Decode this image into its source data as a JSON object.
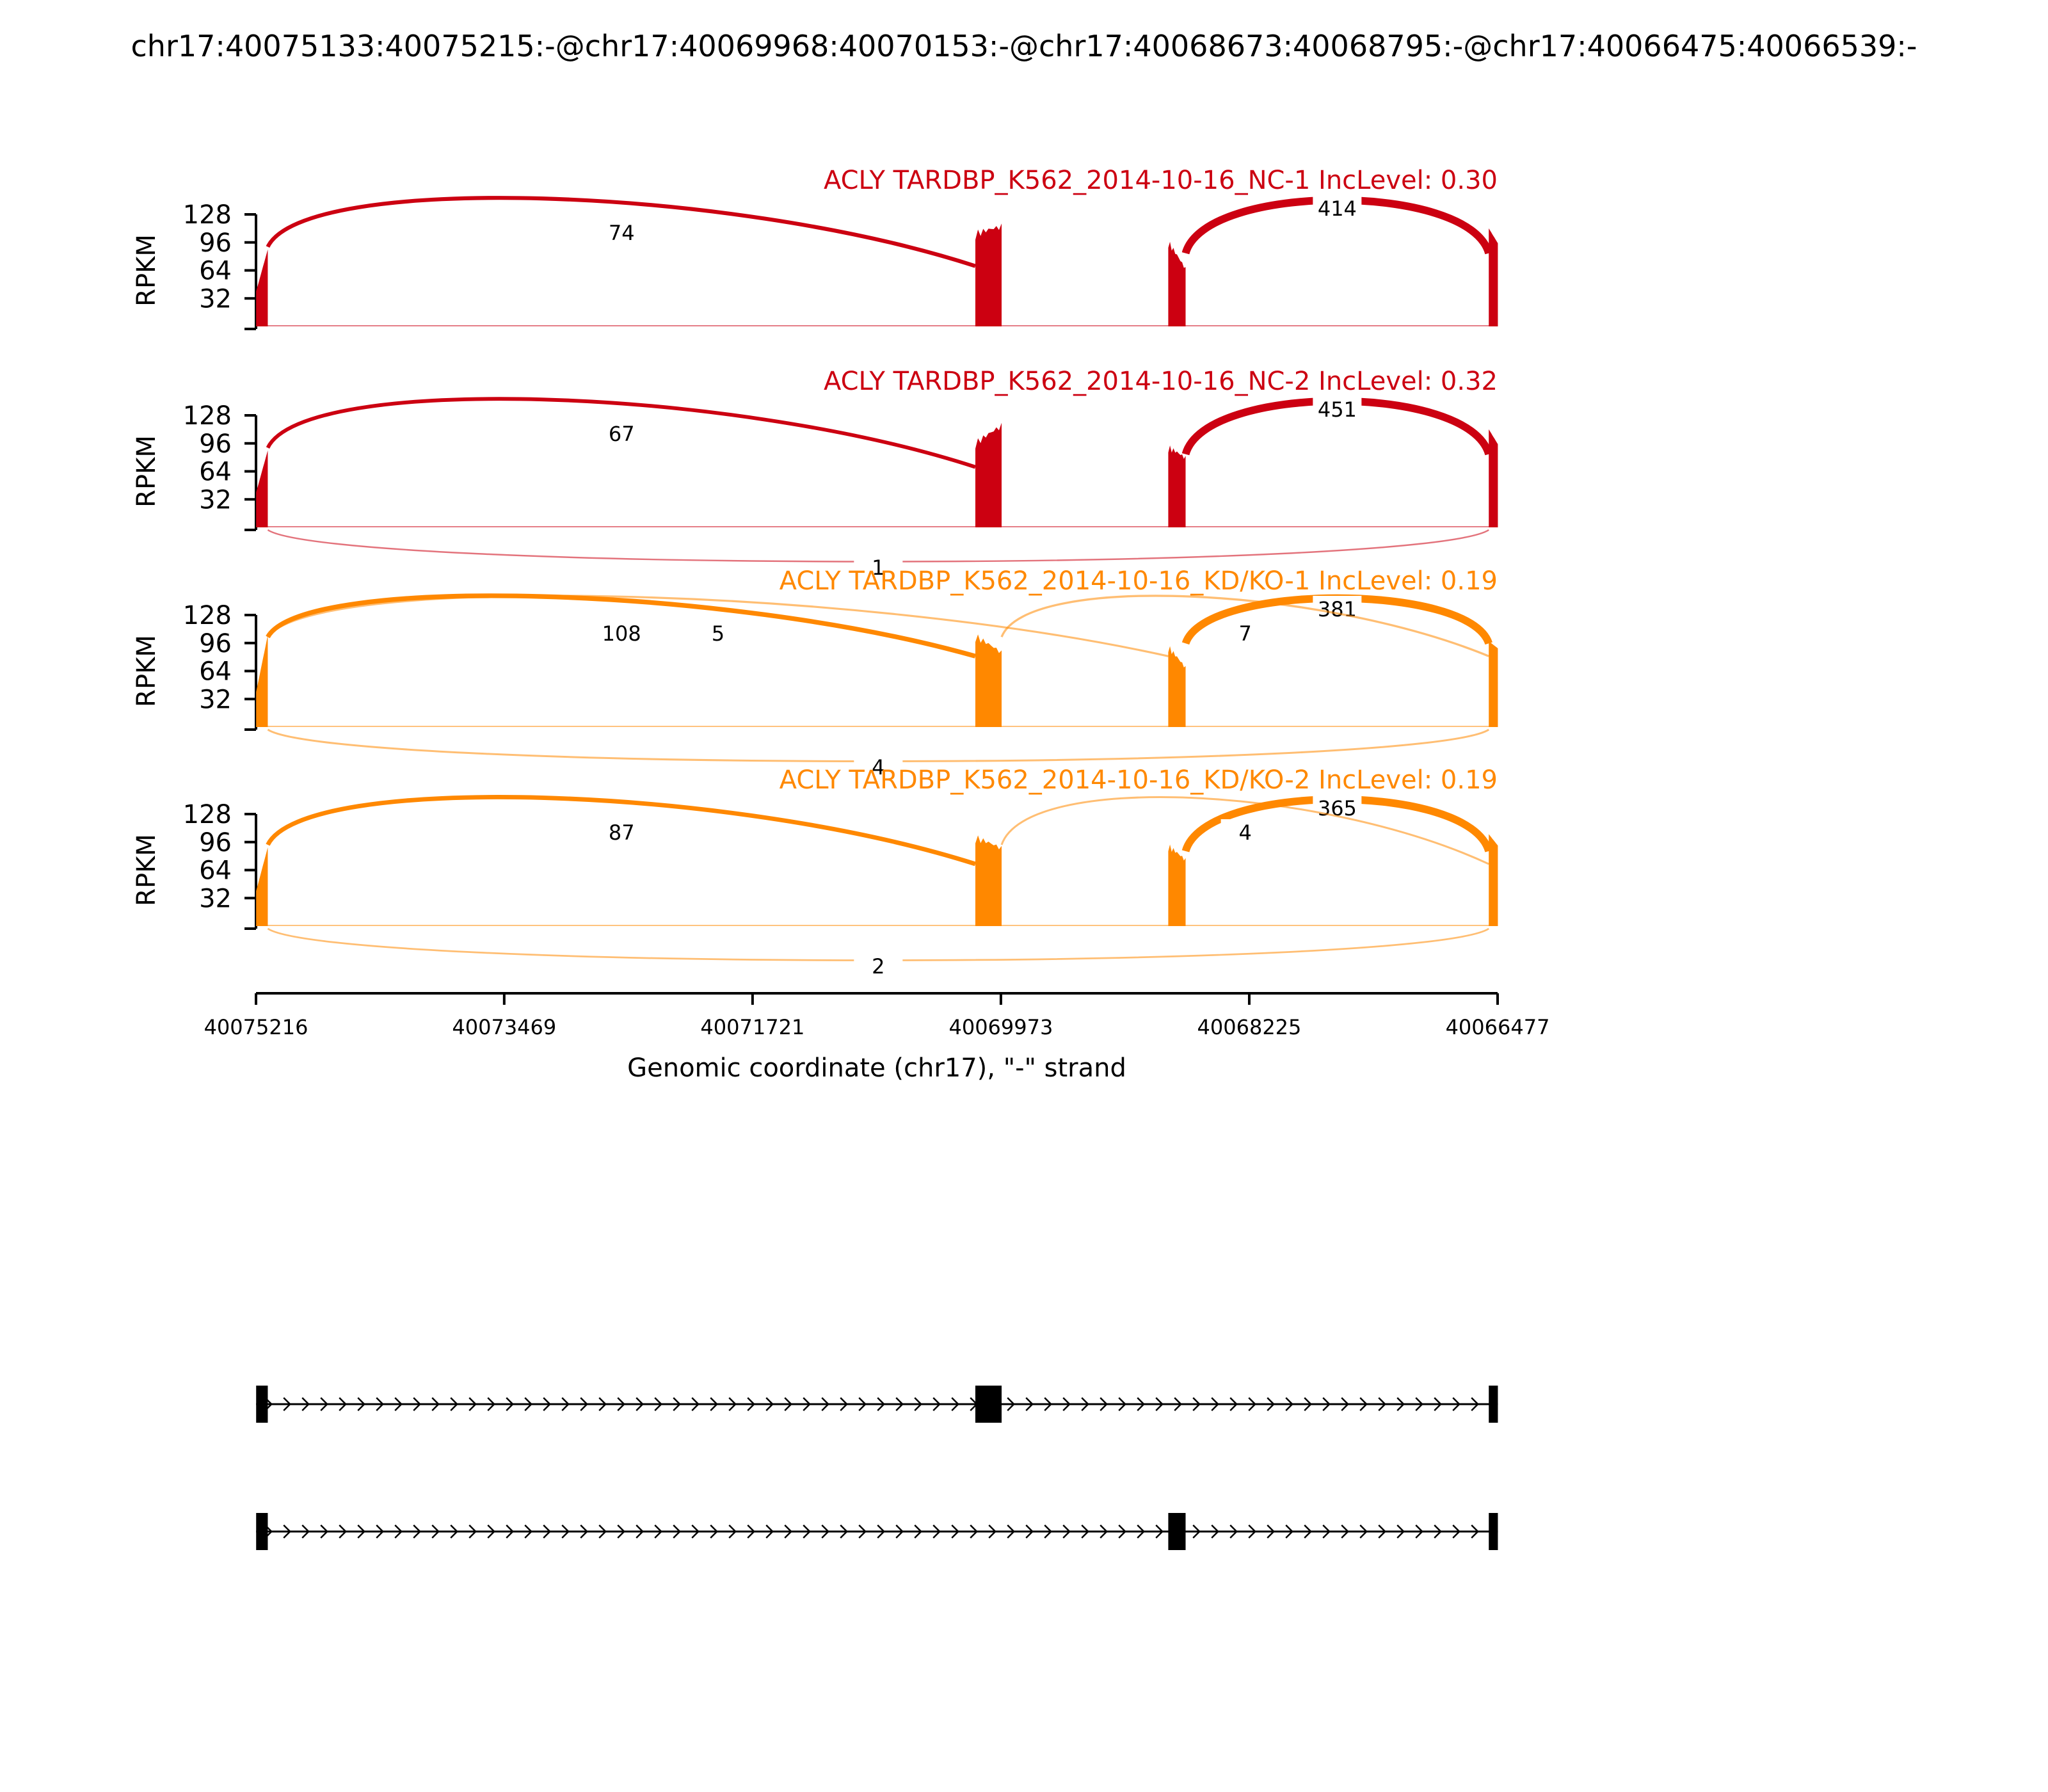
{
  "figure": {
    "title": "chr17:40075133:40075215:-@chr17:40069968:40070153:-@chr17:40068673:40068795:-@chr17:40066475:40066539:-"
  },
  "chart_data": {
    "type": "sashimi",
    "x_axis": {
      "label": "Genomic coordinate (chr17), \"-\" strand",
      "range": [
        40075216,
        40066477
      ],
      "ticks": [
        40075216,
        40073469,
        40071721,
        40069973,
        40068225,
        40066477
      ],
      "tick_labels": [
        "40075216",
        "40073469",
        "40071721",
        "40069973",
        "40068225",
        "40066477"
      ]
    },
    "exons": [
      {
        "start": 40075215,
        "end": 40075133
      },
      {
        "start": 40070153,
        "end": 40069968
      },
      {
        "start": 40068795,
        "end": 40068673
      },
      {
        "start": 40066539,
        "end": 40066475
      }
    ],
    "panels": [
      {
        "title": "ACLY TARDBP_K562_2014-10-16_NC-1 IncLevel: 0.30",
        "color": "#cc0011",
        "ylabel": "RPKM",
        "ylim": [
          0,
          128
        ],
        "yticks": [
          32,
          64,
          96,
          128
        ],
        "coverage": {
          "exon1": [
            40,
            88
          ],
          "exon2": [
            110,
            118
          ],
          "exon3": [
            100,
            68
          ],
          "exon4": [
            112,
            95
          ]
        },
        "junctions": [
          {
            "from": 40075133,
            "to": 40070153,
            "count": 74,
            "side": "above"
          },
          {
            "from": 40068673,
            "to": 40066539,
            "count": 414,
            "side": "above"
          }
        ]
      },
      {
        "title": "ACLY TARDBP_K562_2014-10-16_NC-2 IncLevel: 0.32",
        "color": "#cc0011",
        "ylabel": "RPKM",
        "ylim": [
          0,
          128
        ],
        "yticks": [
          32,
          64,
          96,
          128
        ],
        "coverage": {
          "exon1": [
            40,
            88
          ],
          "exon2": [
            100,
            120
          ],
          "exon3": [
            95,
            82
          ],
          "exon4": [
            112,
            95
          ]
        },
        "junctions": [
          {
            "from": 40075133,
            "to": 40070153,
            "count": 67,
            "side": "above"
          },
          {
            "from": 40068673,
            "to": 40066539,
            "count": 451,
            "side": "above"
          },
          {
            "from": 40075133,
            "to": 40066539,
            "count": 1,
            "side": "below"
          }
        ]
      },
      {
        "title": "ACLY TARDBP_K562_2014-10-16_KD/KO-1 IncLevel: 0.19",
        "color": "#ff8800",
        "ylabel": "RPKM",
        "ylim": [
          0,
          128
        ],
        "yticks": [
          32,
          64,
          96,
          128
        ],
        "coverage": {
          "exon1": [
            40,
            105
          ],
          "exon2": [
            108,
            88
          ],
          "exon3": [
            95,
            70
          ],
          "exon4": [
            98,
            90
          ]
        },
        "junctions": [
          {
            "from": 40075133,
            "to": 40070153,
            "count": 108,
            "side": "above"
          },
          {
            "from": 40068673,
            "to": 40066539,
            "count": 381,
            "side": "above"
          },
          {
            "from": 40075133,
            "to": 40068795,
            "count": 5,
            "side": "above"
          },
          {
            "from": 40069968,
            "to": 40066539,
            "count": 7,
            "side": "above"
          },
          {
            "from": 40075133,
            "to": 40066539,
            "count": 4,
            "side": "below"
          }
        ]
      },
      {
        "title": "ACLY TARDBP_K562_2014-10-16_KD/KO-2 IncLevel: 0.19",
        "color": "#ff8800",
        "ylabel": "RPKM",
        "ylim": [
          0,
          128
        ],
        "yticks": [
          32,
          64,
          96,
          128
        ],
        "coverage": {
          "exon1": [
            40,
            90
          ],
          "exon2": [
            105,
            92
          ],
          "exon3": [
            95,
            78
          ],
          "exon4": [
            105,
            92
          ]
        },
        "junctions": [
          {
            "from": 40075133,
            "to": 40070153,
            "count": 87,
            "side": "above"
          },
          {
            "from": 40068673,
            "to": 40066539,
            "count": 365,
            "side": "above"
          },
          {
            "from": 40069968,
            "to": 40066539,
            "count": 4,
            "side": "above"
          },
          {
            "from": 40075133,
            "to": 40066539,
            "count": 2,
            "side": "below"
          }
        ]
      }
    ],
    "transcripts": [
      {
        "exons": [
          0,
          1,
          3
        ]
      },
      {
        "exons": [
          0,
          2,
          3
        ]
      }
    ]
  }
}
